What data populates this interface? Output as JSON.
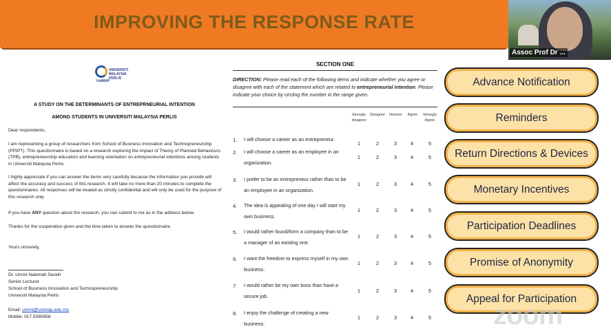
{
  "banner": {
    "title": "IMPROVING THE RESPONSE RATE"
  },
  "video": {
    "participant_name": "Assoc Prof Dr ..."
  },
  "letter": {
    "logo_text": "UNIVERSITI MALAYSIA PERLIS",
    "logo_sub": "UniMAP",
    "title_line1": "A STUDY ON THE DETERMINANTS OF ENTREPRNEURIAL INTENTION",
    "title_line2": "AMONG STUDENTS IN UNIVERSITI MALAYSIA PERLIS",
    "greeting": "Dear respondents,",
    "para1": "I am representing a group of researchers from School of Business Innovation and Technopreneurship (PPIPT). This questionnaire is based on a research exploring the impact of Theory of Planned Behaviours (TPB), entrepreneurship education and learning orientation on entrepreneurial intentions among students in Universiti Malaysia Perlis.",
    "para2": "I highly appreciate if you can answer the items very carefully because the information you provide will affect the accuracy and success of this research. It will take no more than 20 minutes to complete the questionnaires. All responses will be treated as strictly confidential and will only be used for the purpose of this research only.",
    "para3_pre": "If you have ",
    "para3_bold": "ANY",
    "para3_post": " question about the research, you can submit to me as in the address below.",
    "para4": "Thanks for the cooperation given and the time taken to answer the questionnaire.",
    "closing": "Yours sincerely,",
    "sign_name": "Dr. Ummi Naiemah Saraih",
    "sign_title": "Senior Lecturer",
    "sign_school": "School of Business Innovation and Technopreneurship",
    "sign_uni": "Universiti Malaysia Perlis",
    "email_label": "Email: ",
    "email": "ummi@unimap.edu.my",
    "mobile": "Mobile: 017.5080656"
  },
  "section": {
    "title": "SECTION ONE",
    "direction_label": "DIRECTION:",
    "direction_text": " Please read each of the following items and indicate whether you agree or disagree with each of the statement which are related to ",
    "direction_bold": "entrepreneurial intention",
    "direction_end": ". Please indicate your choice by circling the number in the range given.",
    "scale": [
      "Strongly disagree",
      "Disagree",
      "Neutral",
      "Agree",
      "Strongly Agree"
    ],
    "items": [
      {
        "num": "1.",
        "text": "I will choose a career as an entrepreneur."
      },
      {
        "num": "2.",
        "text": "I will choose a career as an employee in an organization."
      },
      {
        "num": "3.",
        "text": "I prefer to be an entrepreneur rather than to be an employee in an organization."
      },
      {
        "num": "4.",
        "text": "The idea is appealing of one day I will start my own business."
      },
      {
        "num": "5.",
        "text": "I would rather found/form a company than to be a manager of an existing one."
      },
      {
        "num": "6.",
        "text": "I want the freedom to express myself in my own business."
      },
      {
        "num": "7.",
        "text": "I would rather be my own boss than have a secure job."
      },
      {
        "num": "8.",
        "text": "I enjoy the challenge of creating a new business."
      }
    ],
    "scores": [
      "1",
      "2",
      "3",
      "4",
      "5"
    ]
  },
  "strategies": [
    "Advance Notification",
    "Reminders",
    "Return Directions & Devices",
    "Monetary Incentives",
    "Participation Deadlines",
    "Promise of Anonymity",
    "Appeal for Participation"
  ],
  "watermark": "zoom",
  "colors": {
    "banner": "#f07a22",
    "pill_fill": "#fde2a7",
    "pill_ring": "#f2b24a"
  }
}
